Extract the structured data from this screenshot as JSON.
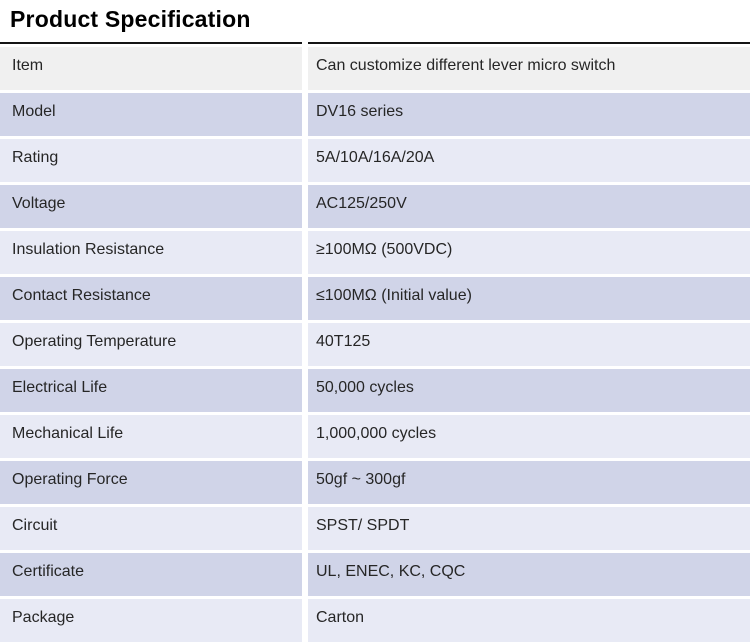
{
  "page": {
    "title": "Product Specification"
  },
  "table": {
    "rows": [
      {
        "label": "Item",
        "value": "Can customize different lever micro switch"
      },
      {
        "label": "Model",
        "value": "DV16 series"
      },
      {
        "label": "Rating",
        "value": "5A/10A/16A/20A"
      },
      {
        "label": "Voltage",
        "value": "AC125/250V"
      },
      {
        "label": "Insulation Resistance",
        "value": "≥100MΩ (500VDC)"
      },
      {
        "label": "Contact Resistance",
        "value": "≤100MΩ (Initial value)"
      },
      {
        "label": "Operating Temperature",
        "value": "40T125"
      },
      {
        "label": "Electrical Life",
        "value": "50,000 cycles"
      },
      {
        "label": "Mechanical Life",
        "value": "1,000,000 cycles"
      },
      {
        "label": "Operating Force",
        "value": "50gf ~ 300gf"
      },
      {
        "label": "Circuit",
        "value": "SPST/ SPDT"
      },
      {
        "label": "Certificate",
        "value": "UL, ENEC, KC, CQC"
      },
      {
        "label": "Package",
        "value": "Carton"
      }
    ],
    "colors": {
      "first_row_bg": "#f0f0f0",
      "accent_row_bg": "#d0d4e8",
      "light_row_bg": "#e8eaf5",
      "top_border": "#151515",
      "text": "#262626",
      "title_text": "#000000"
    }
  }
}
